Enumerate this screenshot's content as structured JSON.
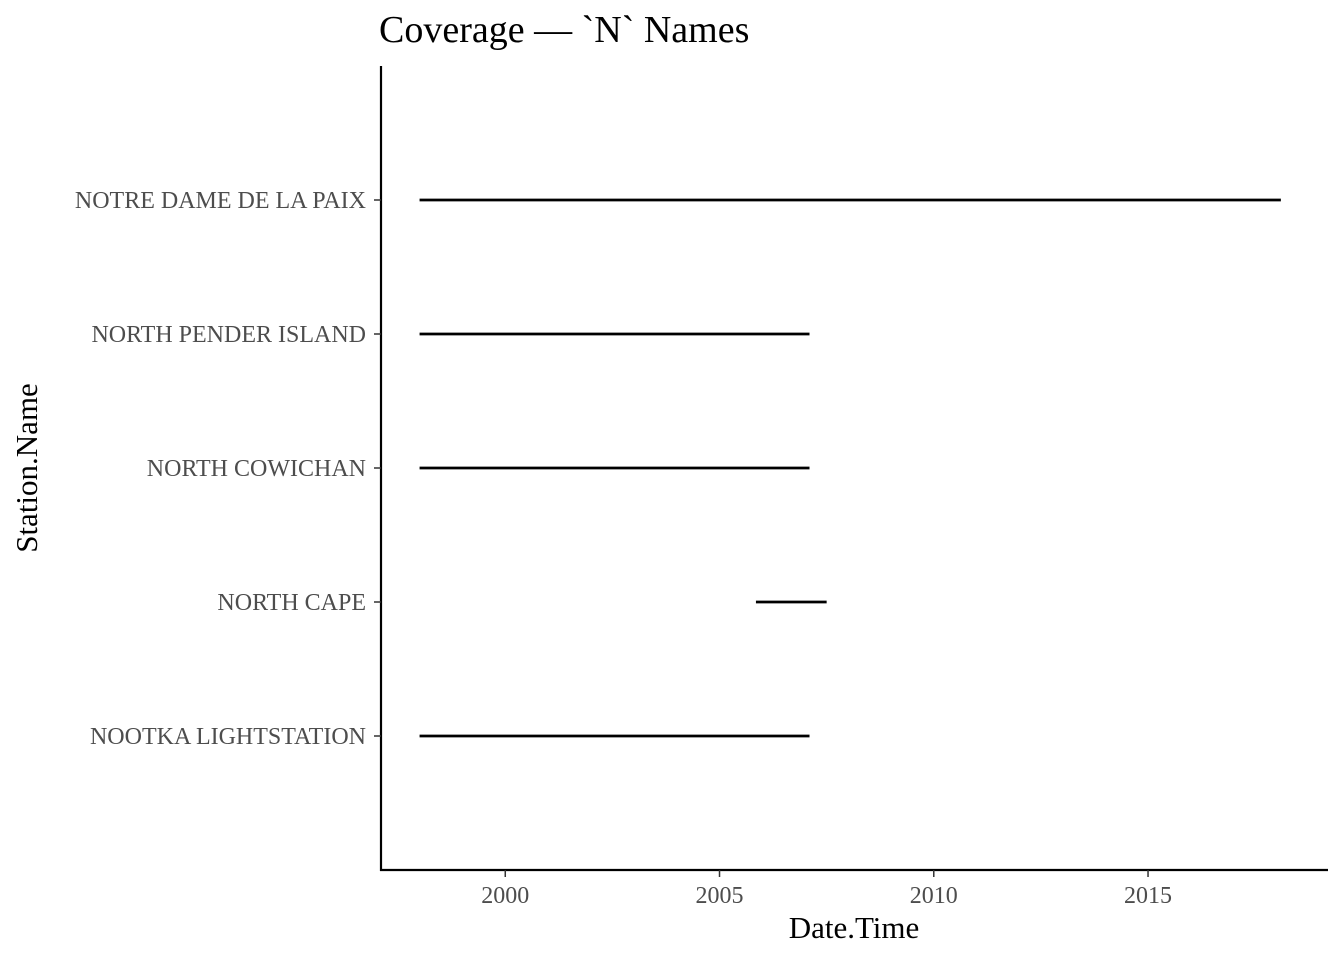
{
  "chart_data": {
    "type": "range",
    "title": "Coverage — `N` Names",
    "xlabel": "Date.Time",
    "ylabel": "Station.Name",
    "xlim": [
      1997.1,
      2019.2
    ],
    "x_ticks": [
      2000,
      2005,
      2010,
      2015
    ],
    "x_tick_labels": [
      "2000",
      "2005",
      "2010",
      "2015"
    ],
    "grid": false,
    "legend": "none",
    "line_color": "#000000",
    "categories": [
      "NOTRE DAME DE LA PAIX",
      "NORTH PENDER ISLAND",
      "NORTH COWICHAN",
      "NORTH CAPE",
      "NOOTKA LIGHTSTATION"
    ],
    "series": [
      {
        "category": "NOTRE DAME DE LA PAIX",
        "start": 1998.0,
        "end": 2018.1
      },
      {
        "category": "NORTH PENDER ISLAND",
        "start": 1998.0,
        "end": 2007.1
      },
      {
        "category": "NORTH COWICHAN",
        "start": 1998.0,
        "end": 2007.1
      },
      {
        "category": "NORTH CAPE",
        "start": 2005.85,
        "end": 2007.5
      },
      {
        "category": "NOOTKA LIGHTSTATION",
        "start": 1998.0,
        "end": 2007.1
      }
    ]
  }
}
